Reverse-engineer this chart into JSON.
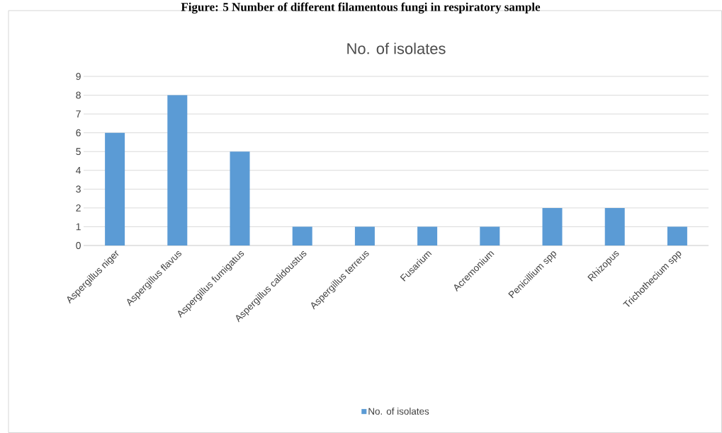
{
  "chart_data": {
    "type": "bar",
    "title": "No. of isolates",
    "annotations": [
      "Figure: 5 Number of different filamentous fungi in respiratory sample"
    ],
    "categories": [
      "Aspergillus niger",
      "Aspergillus flavus",
      "Aspergillus fumigatus",
      "Aspergillus calidoustus",
      "Aspergillus terreus",
      "Fusarium",
      "Acremonium",
      "Penicillium spp",
      "Rhizopus",
      "Trichothecium spp"
    ],
    "series": [
      {
        "name": "No. of isolates",
        "color": "#5b9bd5",
        "values": [
          6,
          8,
          5,
          1,
          1,
          1,
          1,
          2,
          2,
          1
        ]
      }
    ],
    "ylim": [
      0,
      9
    ],
    "yticks": [
      0,
      1,
      2,
      3,
      4,
      5,
      6,
      7,
      8,
      9
    ],
    "grid": "y",
    "legend": "bottom"
  }
}
